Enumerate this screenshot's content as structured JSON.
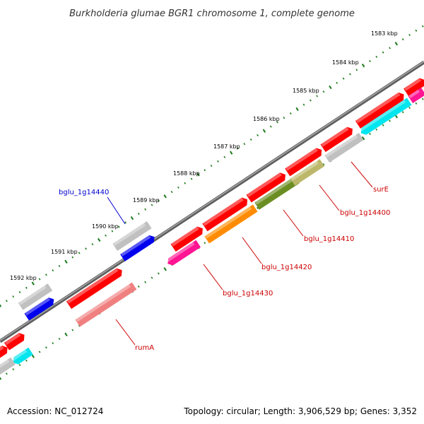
{
  "title": "Burkholderia glumae BGR1 chromosome 1, complete genome",
  "footer": {
    "accession": "Accession: NC_012724",
    "summary": "Topology: circular; Length: 3,906,529 bp; Genes: 3,352"
  },
  "ticks": [
    "1583 kbp",
    "1584 kbp",
    "1585 kbp",
    "1586 kbp",
    "1587 kbp",
    "1588 kbp",
    "1589 kbp",
    "1590 kbp",
    "1591 kbp",
    "1592 kbp"
  ],
  "gene_labels": {
    "bglu_1g14440": "bglu_1g14440",
    "surE": "surE",
    "bglu_1g14400": "bglu_1g14400",
    "bglu_1g14410": "bglu_1g14410",
    "bglu_1g14420": "bglu_1g14420",
    "bglu_1g14430": "bglu_1g14430",
    "rumA": "rumA"
  },
  "colors": {
    "backbone": "#808080",
    "tick": "#1a7a1a",
    "cds": "#ff0000",
    "gray_feature": "#c0c0c0",
    "blue_feature": "#0000ee",
    "cyan_feature": "#00e5ee",
    "magenta_feature": "#ff1493",
    "orange_feature": "#ff8c00",
    "olive_feature": "#6b8e23",
    "khaki_feature": "#bdb76b",
    "salmon_feature": "#f08080",
    "label_red": "#cc0000",
    "label_blue": "#0000cc"
  }
}
